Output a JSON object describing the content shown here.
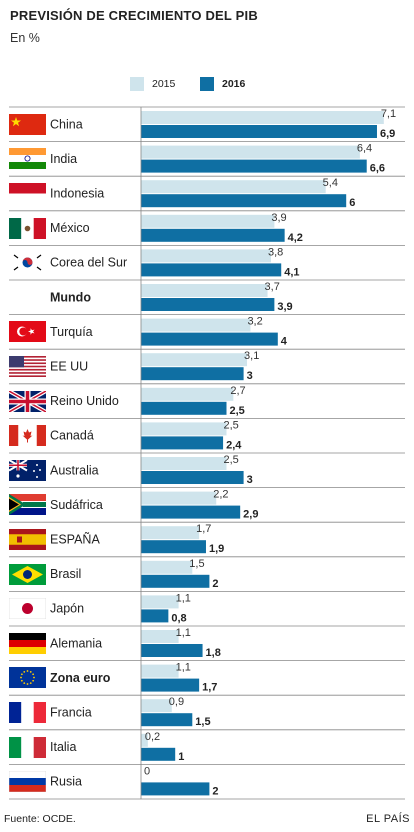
{
  "header": {
    "title": "PREVISIÓN DE CRECIMIENTO DEL PIB",
    "subtitle": "En %"
  },
  "legend": {
    "items": [
      {
        "label": "2015",
        "color": "#cfe4ec",
        "bold": false
      },
      {
        "label": "2016",
        "color": "#0f6fa3",
        "bold": true
      }
    ]
  },
  "footer": {
    "source": "Fuente: OCDE.",
    "brand": "EL PAÍS"
  },
  "chart_data": {
    "type": "bar",
    "orientation": "horizontal",
    "categories": [
      "China",
      "India",
      "Indonesia",
      "México",
      "Corea del Sur",
      "Mundo",
      "Turquía",
      "EE UU",
      "Reino Unido",
      "Canadá",
      "Australia",
      "Sudáfrica",
      "ESPAÑA",
      "Brasil",
      "Japón",
      "Alemania",
      "Zona euro",
      "Francia",
      "Italia",
      "Rusia"
    ],
    "bold_categories": [
      "Mundo",
      "Zona euro"
    ],
    "flags": [
      "china",
      "india",
      "indonesia",
      "mexico",
      "south-korea",
      "",
      "turkey",
      "usa",
      "uk",
      "canada",
      "australia",
      "south-africa",
      "spain",
      "brazil",
      "japan",
      "germany",
      "eu",
      "france",
      "italy",
      "russia"
    ],
    "series": [
      {
        "name": "2015",
        "color": "#cfe4ec",
        "values": [
          7.1,
          6.4,
          5.4,
          3.9,
          3.8,
          3.7,
          3.2,
          3.1,
          2.7,
          2.5,
          2.5,
          2.2,
          1.7,
          1.5,
          1.1,
          1.1,
          1.1,
          0.9,
          0.2,
          0
        ],
        "labels": [
          "7,1",
          "6,4",
          "5,4",
          "3,9",
          "3,8",
          "3,7",
          "3,2",
          "3,1",
          "2,7",
          "2,5",
          "2,5",
          "2,2",
          "1,7",
          "1,5",
          "1,1",
          "1,1",
          "1,1",
          "0,9",
          "0,2",
          "0"
        ]
      },
      {
        "name": "2016",
        "color": "#0f6fa3",
        "values": [
          6.9,
          6.6,
          6,
          4.2,
          4.1,
          3.9,
          4,
          3,
          2.5,
          2.4,
          3,
          2.9,
          1.9,
          2,
          0.8,
          1.8,
          1.7,
          1.5,
          1,
          2
        ],
        "labels": [
          "6,9",
          "6,6",
          "6",
          "4,2",
          "4,1",
          "3,9",
          "4",
          "3",
          "2,5",
          "2,4",
          "3",
          "2,9",
          "1,9",
          "2",
          "0,8",
          "1,8",
          "1,7",
          "1,5",
          "1",
          "2"
        ]
      }
    ],
    "xlim": [
      0,
      7.5
    ],
    "grid": false
  }
}
